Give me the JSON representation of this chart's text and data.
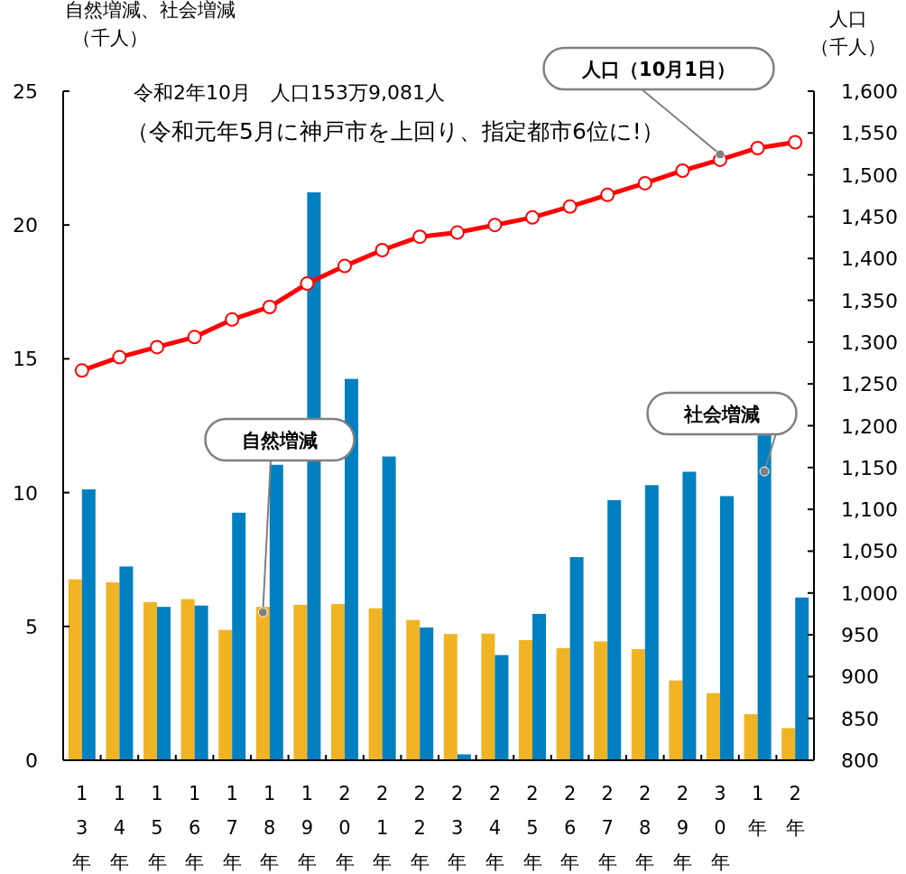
{
  "chart_data": {
    "type": "bar",
    "title": "令和2年10月　人口153万9,081人",
    "subtitle": "（令和元年5月に神戸市を上回り、指定都市6位に!）",
    "ylabel": "自然増減、社会増減（千人）",
    "y2label": "人口（千人）",
    "categories": [
      "13年",
      "14年",
      "15年",
      "16年",
      "17年",
      "18年",
      "19年",
      "20年",
      "21年",
      "22年",
      "23年",
      "24年",
      "25年",
      "26年",
      "27年",
      "28年",
      "29年",
      "30年",
      "1年",
      "2年"
    ],
    "series": [
      {
        "name": "自然増減",
        "color": "#f0b323",
        "values": [
          6.76,
          6.65,
          5.91,
          6.02,
          4.87,
          5.73,
          5.81,
          5.84,
          5.68,
          5.24,
          4.72,
          4.73,
          4.49,
          4.19,
          4.44,
          4.15,
          2.98,
          2.51,
          1.72,
          1.2
        ]
      },
      {
        "name": "社会増減",
        "color": "#0080c0",
        "values": [
          10.12,
          7.24,
          5.73,
          5.78,
          9.25,
          11.04,
          21.22,
          14.25,
          11.35,
          4.96,
          0.22,
          3.93,
          5.47,
          7.59,
          9.72,
          10.28,
          10.78,
          9.87,
          12.14,
          6.08
        ]
      },
      {
        "name": "人口（10月1日）",
        "type": "line",
        "axis": "y2",
        "color": "#ff0000",
        "marker": "circle",
        "values": [
          1266,
          1282,
          1294,
          1306,
          1327,
          1342,
          1370,
          1391,
          1410,
          1426,
          1431,
          1440,
          1449,
          1462,
          1476,
          1490,
          1505,
          1518,
          1532,
          1539
        ]
      }
    ],
    "ylim": [
      0,
      25
    ],
    "yticks": [
      0,
      5,
      10,
      15,
      20,
      25
    ],
    "y2lim": [
      800,
      1600
    ],
    "y2ticks": [
      {
        "value": 800,
        "label": "800"
      },
      {
        "value": 850,
        "label": "850"
      },
      {
        "value": 900,
        "label": "900"
      },
      {
        "value": 950,
        "label": "950"
      },
      {
        "value": 1000,
        "label": "1,000"
      },
      {
        "value": 1050,
        "label": "1,050"
      },
      {
        "value": 1100,
        "label": "1,100"
      },
      {
        "value": 1150,
        "label": "1,150"
      },
      {
        "value": 1200,
        "label": "1,200"
      },
      {
        "value": 1250,
        "label": "1,250"
      },
      {
        "value": 1300,
        "label": "1,300"
      },
      {
        "value": 1350,
        "label": "1,350"
      },
      {
        "value": 1400,
        "label": "1,400"
      },
      {
        "value": 1450,
        "label": "1,450"
      },
      {
        "value": 1500,
        "label": "1,500"
      },
      {
        "value": 1550,
        "label": "1,550"
      },
      {
        "value": 1600,
        "label": "1,600"
      }
    ],
    "grid": false,
    "legend": false
  }
}
